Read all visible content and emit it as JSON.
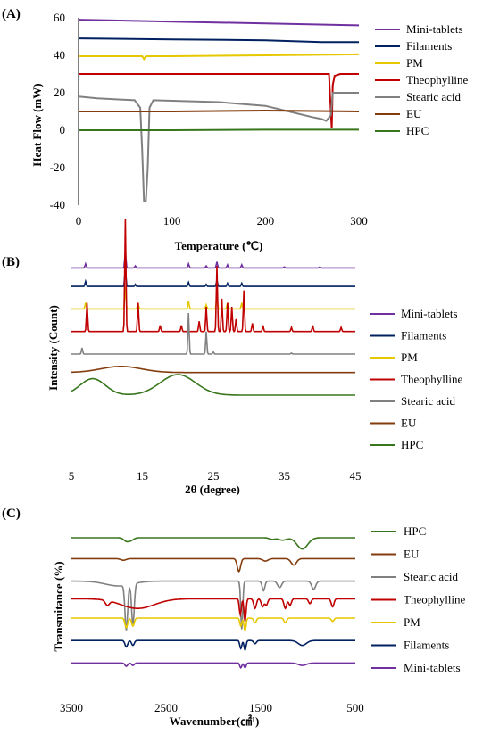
{
  "colors": {
    "mini_tablets": "#7030A0",
    "filaments": "#002060",
    "pm": "#E6C800",
    "theophylline": "#C00000",
    "stearic_acid": "#808080",
    "eu": "#843C0C",
    "hpc": "#38761D"
  },
  "chart_data": [
    {
      "type": "line",
      "panel_label": "(A)",
      "xlabel": "Temperature (℃)",
      "ylabel": "Heat Flow (mW)",
      "xlim": [
        0,
        300
      ],
      "ylim": [
        -40,
        60
      ],
      "x_ticks": [
        "0",
        "100",
        "200",
        "300"
      ],
      "y_ticks": [
        "-40",
        "-20",
        "0",
        "20",
        "40",
        "60"
      ],
      "grid": false,
      "legend_placement": "right",
      "series": [
        {
          "name": "Mini-tablets",
          "color_key": "mini_tablets",
          "x": [
            0,
            100,
            200,
            300
          ],
          "y": [
            59,
            58,
            57,
            56
          ]
        },
        {
          "name": "Filaments",
          "color_key": "filaments",
          "x": [
            0,
            100,
            200,
            260,
            300
          ],
          "y": [
            49,
            48.5,
            48,
            47,
            47
          ]
        },
        {
          "name": "PM",
          "color_key": "pm",
          "x": [
            0,
            68,
            70,
            72,
            100,
            200,
            300
          ],
          "y": [
            39.5,
            39.5,
            38,
            39.5,
            39.5,
            40,
            40.5
          ]
        },
        {
          "name": "Theophylline",
          "color_key": "theophylline",
          "x": [
            0,
            100,
            200,
            268,
            270,
            271,
            272,
            274,
            280,
            300
          ],
          "y": [
            30,
            30,
            30,
            30,
            10,
            1,
            24,
            29,
            30,
            30
          ]
        },
        {
          "name": "Stearic acid",
          "color_key": "stearic_acid",
          "x": [
            0,
            20,
            60,
            66,
            68,
            70,
            72,
            74,
            76,
            80,
            150,
            200,
            250,
            260,
            265,
            270,
            272,
            275,
            300
          ],
          "y": [
            18,
            17,
            16,
            12,
            -10,
            -38,
            -38,
            -20,
            12,
            16,
            15,
            13,
            7,
            6,
            5,
            8,
            20,
            20,
            20
          ]
        },
        {
          "name": "EU",
          "color_key": "eu",
          "x": [
            0,
            100,
            200,
            300
          ],
          "y": [
            10,
            10,
            10.5,
            10
          ]
        },
        {
          "name": "HPC",
          "color_key": "hpc",
          "x": [
            0,
            100,
            200,
            300
          ],
          "y": [
            0,
            0,
            0.3,
            0.3
          ]
        }
      ]
    },
    {
      "type": "line",
      "panel_label": "(B)",
      "xlabel": "2θ (degree)",
      "ylabel": "Intensity (Count)",
      "xlim": [
        5,
        45
      ],
      "x_ticks": [
        "5",
        "15",
        "25",
        "35",
        "45"
      ],
      "grid": false,
      "legend_placement": "right",
      "series": [
        {
          "name": "Mini-tablets",
          "color_key": "mini_tablets",
          "baseline": 0.92,
          "peaks": [
            [
              7,
              0.02
            ],
            [
              12.6,
              0.08
            ],
            [
              14,
              0.01
            ],
            [
              21.5,
              0.02
            ],
            [
              24,
              0.01
            ],
            [
              25.5,
              0.03
            ],
            [
              27,
              0.015
            ],
            [
              29,
              0.015
            ],
            [
              35,
              0.005
            ],
            [
              40,
              0.005
            ]
          ]
        },
        {
          "name": "Filaments",
          "color_key": "filaments",
          "baseline": 0.83,
          "peaks": [
            [
              7,
              0.025
            ],
            [
              12.6,
              0.09
            ],
            [
              14,
              0.01
            ],
            [
              21.5,
              0.02
            ],
            [
              24,
              0.01
            ],
            [
              25.5,
              0.03
            ],
            [
              27,
              0.015
            ],
            [
              29,
              0.015
            ]
          ]
        },
        {
          "name": "PM",
          "color_key": "pm",
          "baseline": 0.72,
          "peaks": [
            [
              7,
              0.03
            ],
            [
              12.6,
              0.11
            ],
            [
              14.4,
              0.03
            ],
            [
              21.5,
              0.04
            ],
            [
              24,
              0.02
            ],
            [
              25.5,
              0.06
            ],
            [
              27,
              0.03
            ],
            [
              29,
              0.03
            ]
          ]
        },
        {
          "name": "Theophylline",
          "color_key": "theophylline",
          "baseline": 0.61,
          "peaks": [
            [
              7.2,
              0.14
            ],
            [
              12.6,
              0.55
            ],
            [
              14.4,
              0.14
            ],
            [
              17.5,
              0.03
            ],
            [
              20.5,
              0.03
            ],
            [
              23,
              0.05
            ],
            [
              24,
              0.12
            ],
            [
              25.5,
              0.32
            ],
            [
              26.2,
              0.16
            ],
            [
              27,
              0.14
            ],
            [
              27.6,
              0.12
            ],
            [
              28.2,
              0.06
            ],
            [
              29.3,
              0.2
            ],
            [
              30.5,
              0.04
            ],
            [
              32,
              0.03
            ],
            [
              36,
              0.02
            ],
            [
              39,
              0.03
            ],
            [
              43,
              0.02
            ]
          ]
        },
        {
          "name": "Stearic acid",
          "color_key": "stearic_acid",
          "baseline": 0.5,
          "peaks": [
            [
              6.5,
              0.03
            ],
            [
              21.5,
              0.2
            ],
            [
              24,
              0.11
            ],
            [
              25,
              0.01
            ],
            [
              36,
              0.005
            ]
          ]
        },
        {
          "name": "EU",
          "color_key": "eu",
          "baseline": 0.41,
          "humps": [
            [
              12,
              0.03,
              4
            ]
          ]
        },
        {
          "name": "HPC",
          "color_key": "hpc",
          "baseline": 0.3,
          "humps": [
            [
              8,
              0.08,
              2.5
            ],
            [
              20,
              0.1,
              3.5
            ]
          ]
        }
      ]
    },
    {
      "type": "line",
      "panel_label": "(C)",
      "xlabel": "Wavenumber(㎠¹)",
      "ylabel": "Transmitance (%)",
      "xlim": [
        3500,
        500
      ],
      "x_ticks": [
        "3500",
        "2500",
        "1500",
        "500"
      ],
      "grid": false,
      "legend_placement": "right",
      "series": [
        {
          "name": "HPC",
          "color_key": "hpc",
          "baseline": 0.9,
          "bands": [
            [
              2920,
              0.02,
              40
            ],
            [
              2870,
              0.015,
              40
            ],
            [
              1380,
              0.01,
              40
            ],
            [
              1270,
              0.015,
              60
            ],
            [
              1060,
              0.07,
              80
            ]
          ]
        },
        {
          "name": "EU",
          "color_key": "eu",
          "baseline": 0.77,
          "bands": [
            [
              2950,
              0.01,
              40
            ],
            [
              1730,
              0.08,
              25
            ],
            [
              1450,
              0.015,
              40
            ],
            [
              1150,
              0.04,
              40
            ]
          ]
        },
        {
          "name": "Stearic acid",
          "color_key": "stearic_acid",
          "baseline": 0.63,
          "bands": [
            [
              3000,
              0.03,
              200
            ],
            [
              2920,
              0.28,
              20
            ],
            [
              2850,
              0.25,
              20
            ],
            [
              1700,
              0.3,
              15
            ],
            [
              1470,
              0.06,
              20
            ],
            [
              1300,
              0.04,
              30
            ],
            [
              940,
              0.05,
              30
            ]
          ]
        },
        {
          "name": "Theophylline",
          "color_key": "theophylline",
          "baseline": 0.52,
          "bands": [
            [
              3120,
              0.03,
              30
            ],
            [
              2800,
              0.06,
              250
            ],
            [
              1715,
              0.1,
              15
            ],
            [
              1665,
              0.14,
              15
            ],
            [
              1560,
              0.06,
              20
            ],
            [
              1480,
              0.05,
              20
            ],
            [
              1440,
              0.04,
              20
            ],
            [
              1240,
              0.06,
              20
            ],
            [
              1190,
              0.04,
              20
            ],
            [
              980,
              0.03,
              20
            ],
            [
              740,
              0.05,
              20
            ]
          ]
        },
        {
          "name": "PM",
          "color_key": "pm",
          "baseline": 0.4,
          "bands": [
            [
              2920,
              0.06,
              20
            ],
            [
              2850,
              0.05,
              20
            ],
            [
              1710,
              0.05,
              15
            ],
            [
              1665,
              0.08,
              15
            ],
            [
              1560,
              0.03,
              20
            ],
            [
              1240,
              0.03,
              20
            ],
            [
              740,
              0.02,
              20
            ]
          ]
        },
        {
          "name": "Filaments",
          "color_key": "filaments",
          "baseline": 0.26,
          "bands": [
            [
              2920,
              0.04,
              20
            ],
            [
              2850,
              0.03,
              20
            ],
            [
              1710,
              0.05,
              15
            ],
            [
              1665,
              0.06,
              15
            ],
            [
              1560,
              0.02,
              20
            ],
            [
              1060,
              0.03,
              60
            ]
          ]
        },
        {
          "name": "Mini-tablets",
          "color_key": "mini_tablets",
          "baseline": 0.12,
          "bands": [
            [
              2920,
              0.02,
              20
            ],
            [
              2850,
              0.015,
              20
            ],
            [
              1710,
              0.03,
              15
            ],
            [
              1665,
              0.03,
              15
            ],
            [
              1060,
              0.015,
              60
            ]
          ]
        }
      ]
    }
  ]
}
